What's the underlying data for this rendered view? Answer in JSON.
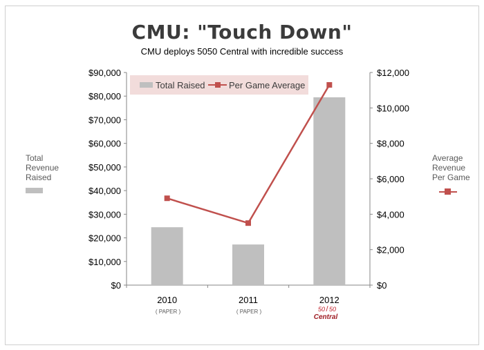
{
  "title": "CMU:  \"Touch Down\"",
  "subtitle": "CMU deploys 5050 Central with incredible success",
  "left_axis_title": [
    "Total",
    "Revenue",
    "Raised"
  ],
  "right_axis_title": [
    "Average",
    "Revenue",
    "Per Game"
  ],
  "category_notes": [
    "( PAPER )",
    "( PAPER )"
  ],
  "logo": {
    "top": "50",
    "sep": "/",
    "top2": "50",
    "bottom": "Central"
  },
  "colors": {
    "bar": "#bfbfbf",
    "line": "#c0504d",
    "legend_bg": "#f2dcdb"
  },
  "chart_data": {
    "type": "bar",
    "categories": [
      "2010",
      "2011",
      "2012"
    ],
    "series": [
      {
        "name": "Total Raised",
        "type": "bar",
        "axis": "left",
        "values": [
          24500,
          17200,
          79500
        ]
      },
      {
        "name": "Per Game Average",
        "type": "line",
        "axis": "right",
        "values": [
          4900,
          3500,
          11300
        ]
      }
    ],
    "y_left": {
      "min": 0,
      "max": 90000,
      "step": 10000,
      "ticks": [
        "$0",
        "$10,000",
        "$20,000",
        "$30,000",
        "$40,000",
        "$50,000",
        "$60,000",
        "$70,000",
        "$80,000",
        "$90,000"
      ]
    },
    "y_right": {
      "min": 0,
      "max": 12000,
      "step": 2000,
      "ticks": [
        "$0",
        "$2,000",
        "$4,000",
        "$6,000",
        "$8,000",
        "$10,000",
        "$12,000"
      ]
    },
    "legend": {
      "position": "top-left",
      "entries": [
        "Total Raised",
        "Per Game Average"
      ]
    },
    "grid": false
  }
}
